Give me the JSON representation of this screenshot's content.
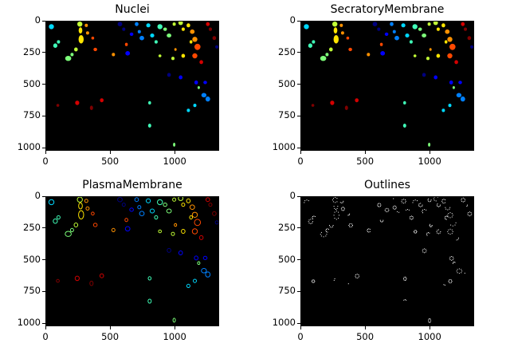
{
  "panels": [
    {
      "title": "Nuclei",
      "style": "filled"
    },
    {
      "title": "SecratoryMembrane",
      "style": "filled"
    },
    {
      "title": "PlasmaMembrane",
      "style": "ring"
    },
    {
      "title": "Outlines",
      "style": "dots"
    }
  ],
  "y_ticks": [
    "0",
    "250",
    "500",
    "750",
    "1000"
  ],
  "x_ticks": [
    "0",
    "500",
    "1000"
  ],
  "image_extent": {
    "width": 1344,
    "height": 1024
  },
  "colormap": [
    "#00007f",
    "#0000ff",
    "#0080ff",
    "#00d8ff",
    "#40ffb8",
    "#7dff7a",
    "#c1ff36",
    "#ffe500",
    "#ff9100",
    "#ff4800",
    "#d40000",
    "#7f0000"
  ],
  "outline_color": "#ffffff",
  "background_color": "#000000"
}
